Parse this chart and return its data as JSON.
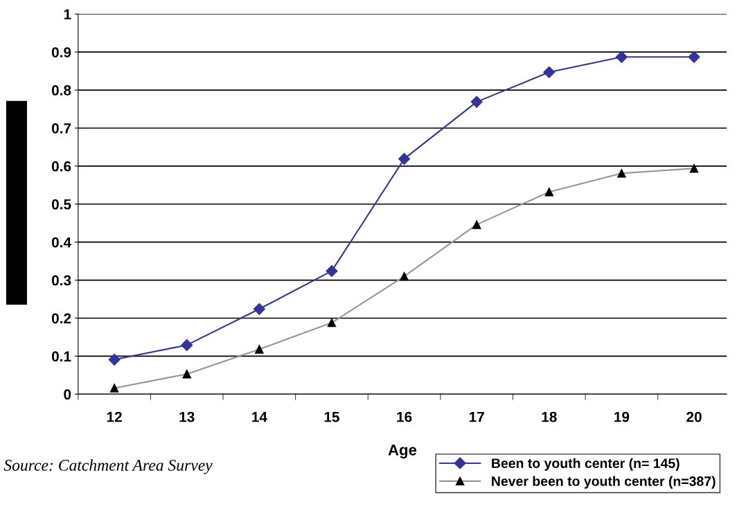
{
  "chart_data": {
    "type": "line",
    "xlabel": "Age",
    "categories": [
      "12",
      "13",
      "14",
      "15",
      "16",
      "17",
      "18",
      "19",
      "20"
    ],
    "series": [
      {
        "name": "Been to youth center (n= 145)",
        "color": "#333399",
        "marker": "diamond",
        "values": [
          0.091,
          0.129,
          0.224,
          0.324,
          0.619,
          0.769,
          0.847,
          0.887,
          0.887
        ]
      },
      {
        "name": "Never been to youth center (n=387)",
        "color": "#969696",
        "marker": "triangle",
        "values": [
          0.016,
          0.053,
          0.118,
          0.188,
          0.31,
          0.446,
          0.532,
          0.581,
          0.594
        ]
      }
    ],
    "ylim": [
      0,
      1
    ],
    "yticks": [
      0,
      0.1,
      0.2,
      0.3,
      0.4,
      0.5,
      0.6,
      0.7,
      0.8,
      0.9,
      1
    ],
    "grid": "y",
    "legend": "bottom right",
    "annotations": [
      "Source: Catchment Area Survey"
    ]
  }
}
